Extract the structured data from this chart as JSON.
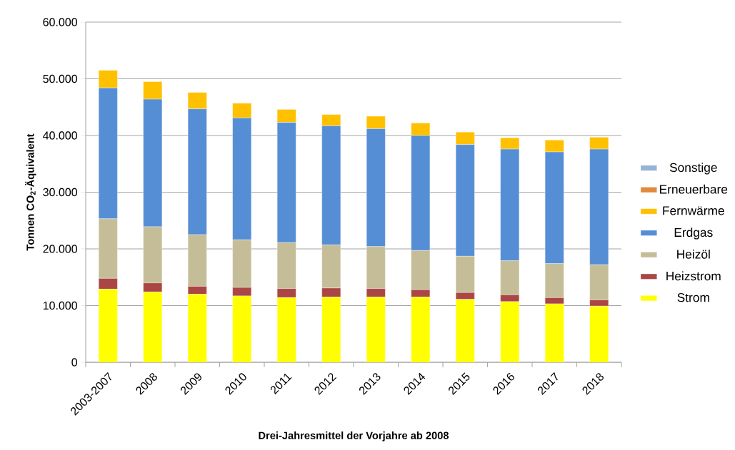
{
  "chart_data": {
    "type": "bar",
    "stacked": true,
    "xlabel": "Drei-Jahresmittel der Vorjahre ab 2008",
    "ylabel": "Tonnen CO$_{2}$-Äquivalent",
    "categories": [
      "2003-2007",
      "2008",
      "2009",
      "2010",
      "2011",
      "2012",
      "2013",
      "2014",
      "2015",
      "2016",
      "2017",
      "2018"
    ],
    "series": [
      {
        "name": "Strom",
        "color": "#ffff00",
        "values": [
          12900,
          12400,
          12000,
          11700,
          11400,
          11500,
          11500,
          11500,
          11100,
          10700,
          10300,
          9900
        ]
      },
      {
        "name": "Heizstrom",
        "color": "#aa4643",
        "values": [
          1900,
          1600,
          1400,
          1500,
          1600,
          1600,
          1500,
          1300,
          1200,
          1200,
          1100,
          1100
        ]
      },
      {
        "name": "Heizöl",
        "color": "#c4bd97",
        "values": [
          10500,
          9900,
          9100,
          8400,
          8100,
          7600,
          7400,
          6900,
          6400,
          6000,
          6000,
          6200
        ]
      },
      {
        "name": "Erdgas",
        "color": "#558ed5",
        "values": [
          23100,
          22500,
          22200,
          21500,
          21200,
          21000,
          20800,
          20300,
          19700,
          19700,
          19700,
          20400
        ]
      },
      {
        "name": "Fernwärme",
        "color": "#ffc000",
        "values": [
          3100,
          3100,
          2900,
          2600,
          2300,
          2000,
          2200,
          2200,
          2200,
          2000,
          2100,
          2100
        ]
      },
      {
        "name": "Erneuerbare",
        "color": "#e08a3c",
        "values": [
          0,
          0,
          0,
          0,
          0,
          0,
          0,
          0,
          0,
          0,
          0,
          0
        ]
      },
      {
        "name": "Sonstige",
        "color": "#95b3d7",
        "values": [
          0,
          0,
          0,
          0,
          0,
          0,
          0,
          0,
          0,
          0,
          0,
          0
        ]
      }
    ],
    "ylim": [
      0,
      60000
    ],
    "yticks": [
      {
        "value": 0,
        "label": "0"
      },
      {
        "value": 10000,
        "label": "10.000"
      },
      {
        "value": 20000,
        "label": "20.000"
      },
      {
        "value": 30000,
        "label": "30.000"
      },
      {
        "value": 40000,
        "label": "40.000"
      },
      {
        "value": 50000,
        "label": "50.000"
      },
      {
        "value": 60000,
        "label": "60.000"
      }
    ],
    "grid": "y",
    "legend": "right"
  }
}
